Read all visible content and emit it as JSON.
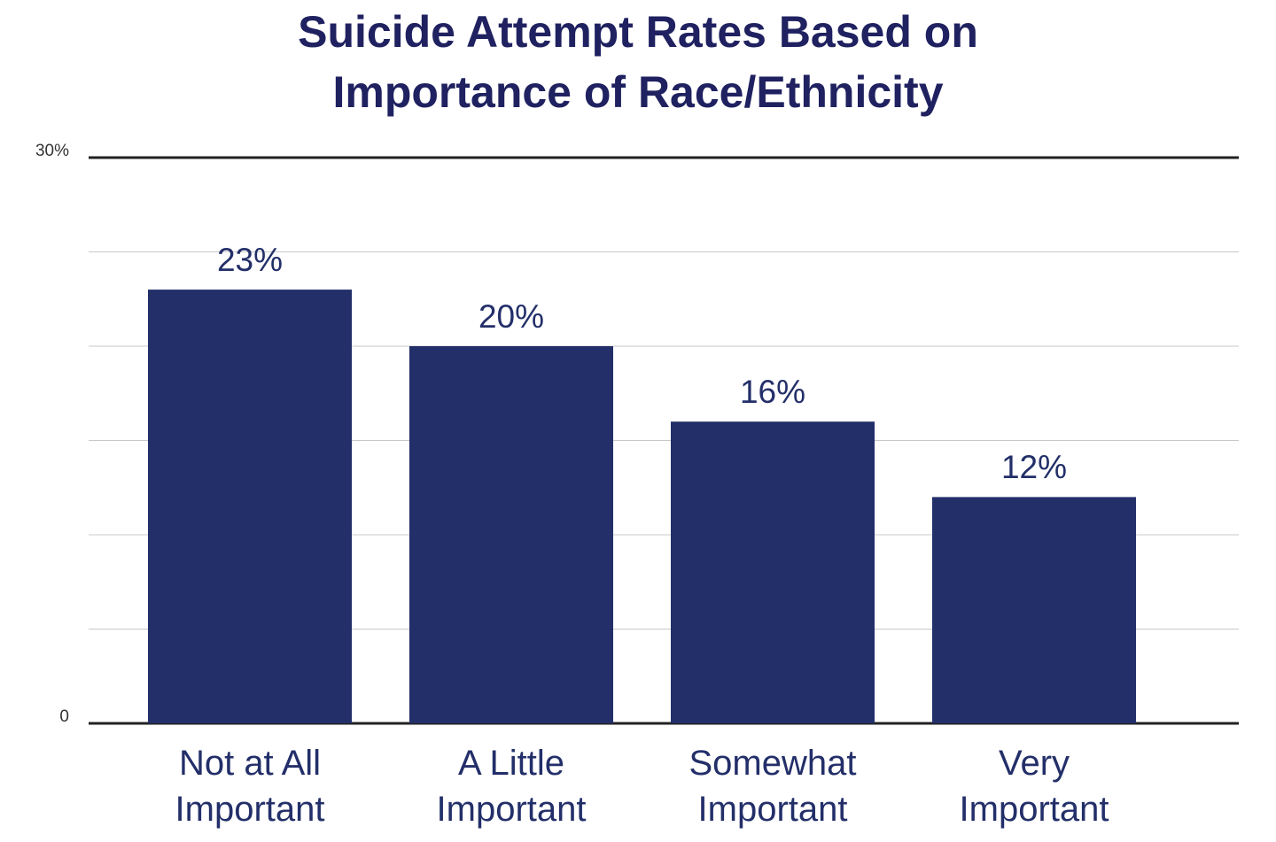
{
  "chart_data": {
    "type": "bar",
    "title": "Suicide Attempt Rates Based on Importance of Race/Ethnicity",
    "categories": [
      "Not at All Important",
      "A Little Important",
      "Somewhat Important",
      "Very Important"
    ],
    "values": [
      23,
      20,
      16,
      12
    ],
    "value_labels": [
      "23%",
      "20%",
      "16%",
      "12%"
    ],
    "color": "#232f69",
    "ylim": [
      0,
      30
    ],
    "yticks": [
      0,
      {
        "value": 5,
        "label": null
      },
      {
        "value": 10,
        "label": null
      },
      {
        "value": 15,
        "label": null
      },
      {
        "value": 20,
        "label": null
      },
      {
        "value": 25,
        "label": null
      },
      {
        "value": 30,
        "label": "30%"
      }
    ],
    "grid": true
  }
}
